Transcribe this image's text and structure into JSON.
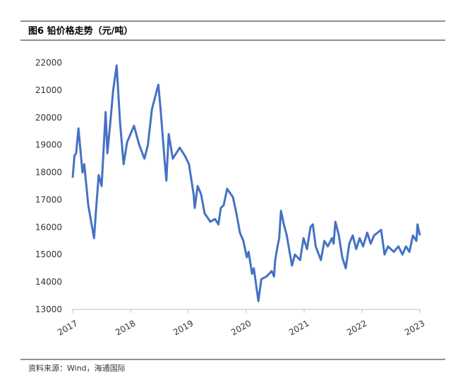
{
  "chart_data": {
    "type": "line",
    "title": "图6  铅价格走势（元/吨）",
    "source": "资料来源：Wind，海通国际",
    "xlim": [
      2017,
      2023
    ],
    "xticks": [
      2017,
      2018,
      2019,
      2020,
      2021,
      2022,
      2023
    ],
    "ylim": [
      13000,
      22000
    ],
    "yticks": [
      13000,
      14000,
      15000,
      16000,
      17000,
      18000,
      19000,
      20000,
      21000,
      22000
    ],
    "grid": false,
    "series": [
      {
        "name": "铅价格",
        "color": "#4472c4",
        "x": [
          2017.0,
          2017.03,
          2017.06,
          2017.1,
          2017.13,
          2017.17,
          2017.2,
          2017.27,
          2017.32,
          2017.37,
          2017.41,
          2017.45,
          2017.5,
          2017.57,
          2017.6,
          2017.65,
          2017.7,
          2017.76,
          2017.82,
          2017.88,
          2017.94,
          2018.0,
          2018.06,
          2018.15,
          2018.24,
          2018.3,
          2018.37,
          2018.43,
          2018.48,
          2018.52,
          2018.59,
          2018.62,
          2018.66,
          2018.73,
          2018.85,
          2018.94,
          2019.01,
          2019.09,
          2019.11,
          2019.16,
          2019.22,
          2019.28,
          2019.38,
          2019.46,
          2019.52,
          2019.56,
          2019.61,
          2019.67,
          2019.77,
          2019.83,
          2019.89,
          2019.95,
          2020.01,
          2020.04,
          2020.1,
          2020.13,
          2020.21,
          2020.26,
          2020.35,
          2020.44,
          2020.48,
          2020.5,
          2020.54,
          2020.57,
          2020.6,
          2020.65,
          2020.7,
          2020.74,
          2020.79,
          2020.84,
          2020.93,
          2020.99,
          2021.05,
          2021.11,
          2021.15,
          2021.2,
          2021.29,
          2021.35,
          2021.41,
          2021.48,
          2021.51,
          2021.54,
          2021.6,
          2021.66,
          2021.72,
          2021.78,
          2021.84,
          2021.9,
          2021.96,
          2022.02,
          2022.09,
          2022.15,
          2022.21,
          2022.33,
          2022.39,
          2022.45,
          2022.55,
          2022.63,
          2022.7,
          2022.76,
          2022.82,
          2022.88,
          2022.94,
          2022.96,
          2023.0
        ],
        "values": [
          17800,
          18600,
          18700,
          19600,
          18900,
          18000,
          18300,
          16800,
          16200,
          15600,
          16800,
          17900,
          17500,
          20200,
          18700,
          19800,
          21000,
          21900,
          19800,
          18300,
          19100,
          19400,
          19700,
          19000,
          18500,
          19000,
          20300,
          20800,
          21200,
          20300,
          18400,
          17700,
          19400,
          18500,
          18900,
          18600,
          18300,
          17200,
          16700,
          17500,
          17200,
          16500,
          16200,
          16300,
          16100,
          16700,
          16800,
          17400,
          17100,
          16500,
          15800,
          15500,
          14900,
          15100,
          14300,
          14500,
          13300,
          14100,
          14200,
          14400,
          14200,
          14800,
          15300,
          15600,
          16600,
          16100,
          15700,
          15200,
          14600,
          15000,
          14800,
          15600,
          15200,
          16000,
          16100,
          15300,
          14800,
          15500,
          15300,
          15600,
          15400,
          16200,
          15700,
          14900,
          14500,
          15400,
          15700,
          15200,
          15600,
          15300,
          15800,
          15400,
          15700,
          15900,
          15000,
          15300,
          15100,
          15300,
          15000,
          15300,
          15100,
          15700,
          15500,
          16100,
          15700
        ]
      }
    ]
  }
}
